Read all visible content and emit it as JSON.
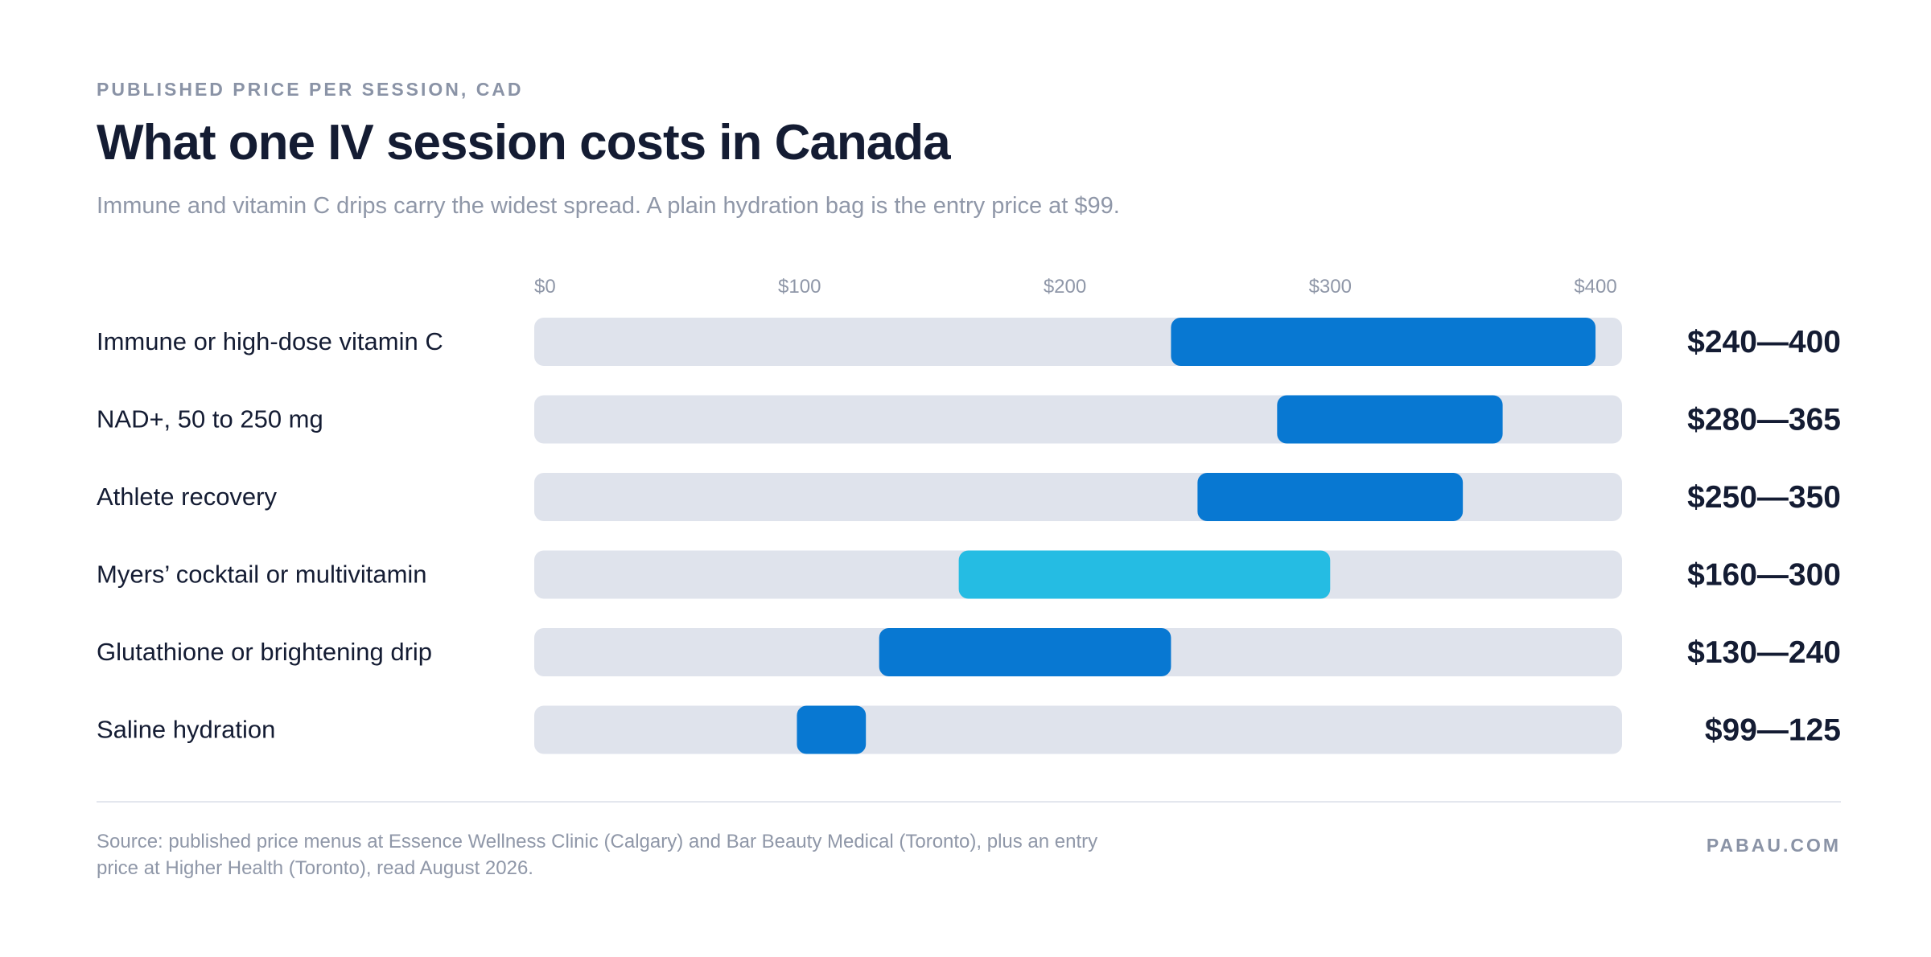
{
  "eyebrow": "PUBLISHED PRICE PER SESSION, CAD",
  "title": "What one IV session costs in Canada",
  "subtitle": "Immune and vitamin C drips carry the widest spread. A plain hydration bag is the entry price at $99.",
  "footer": {
    "source": "Source: published price menus at Essence Wellness Clinic (Calgary) and Bar Beauty Medical (Toronto), plus an entry price at Higher Health (Toronto), read August 2026.",
    "brand": "PABAU.COM"
  },
  "colors": {
    "track": "#dfe3ec",
    "bar": "#0878d2",
    "bar_highlight": "#25bce3",
    "label": "#141c33",
    "tick": "#8f97a8"
  },
  "chart_data": {
    "type": "bar",
    "orientation": "horizontal-range",
    "title": "What one IV session costs in Canada",
    "xlabel": "",
    "ylabel": "",
    "xlim": [
      0,
      410
    ],
    "ticks": [
      {
        "value": 0,
        "label": "$0"
      },
      {
        "value": 100,
        "label": "$100"
      },
      {
        "value": 200,
        "label": "$200"
      },
      {
        "value": 300,
        "label": "$300"
      },
      {
        "value": 400,
        "label": "$400"
      }
    ],
    "grid": false,
    "legend": "none",
    "categories": [
      "Immune or high-dose vitamin C",
      "NAD+, 50 to 250 mg",
      "Athlete recovery",
      "Myers’ cocktail or multivitamin",
      "Glutathione or brightening drip",
      "Saline hydration"
    ],
    "ranges": [
      {
        "low": 240,
        "high": 400,
        "label": "$240—400",
        "highlight": false
      },
      {
        "low": 280,
        "high": 365,
        "label": "$280—365",
        "highlight": false
      },
      {
        "low": 250,
        "high": 350,
        "label": "$250—350",
        "highlight": false
      },
      {
        "low": 160,
        "high": 300,
        "label": "$160—300",
        "highlight": true
      },
      {
        "low": 130,
        "high": 240,
        "label": "$130—240",
        "highlight": false
      },
      {
        "low": 99,
        "high": 125,
        "label": "$99—125",
        "highlight": false
      }
    ]
  }
}
